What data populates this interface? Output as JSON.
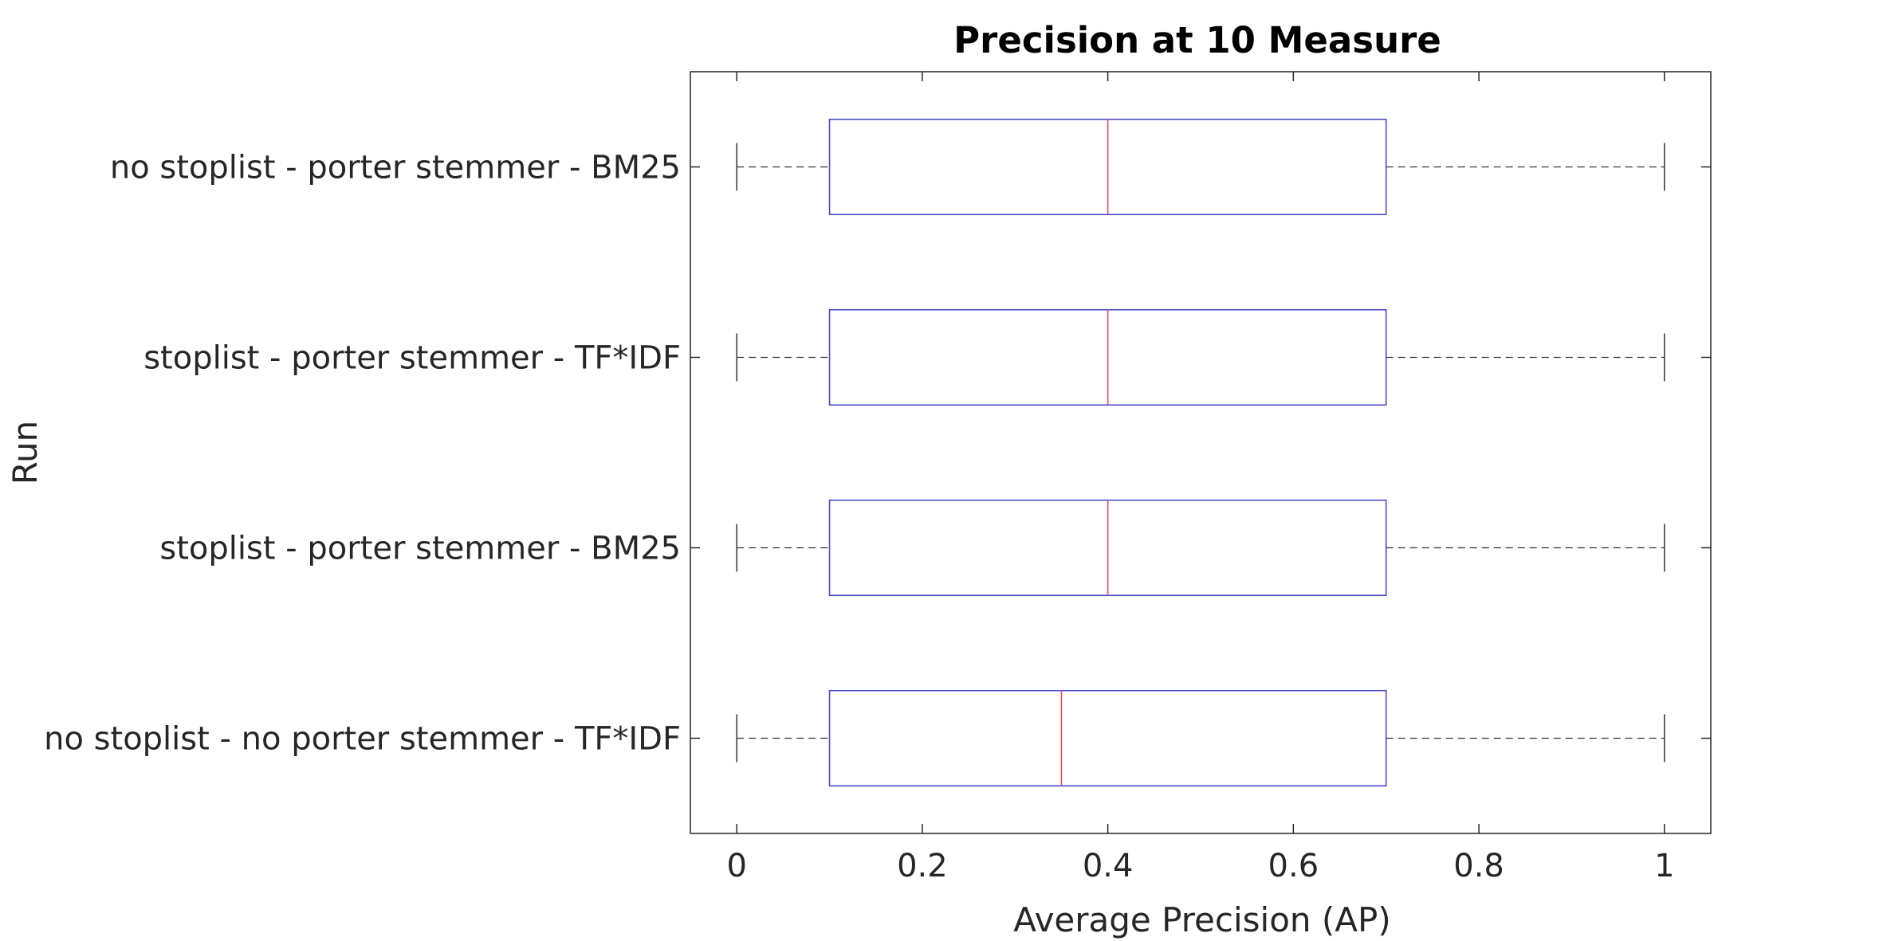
{
  "chart_data": {
    "type": "boxplot",
    "orientation": "horizontal",
    "title": "Precision at 10 Measure",
    "xlabel": "Average Precision (AP)",
    "ylabel": "Run",
    "xlim": [
      -0.05,
      1.05
    ],
    "xticks": [
      0,
      0.2,
      0.4,
      0.6,
      0.8,
      1
    ],
    "xtick_labels": [
      "0",
      "0.2",
      "0.4",
      "0.6",
      "0.8",
      "1"
    ],
    "grid": false,
    "categories": [
      "no stoplist - porter stemmer - BM25",
      "stoplist - porter stemmer - TF*IDF",
      "stoplist - porter stemmer - BM25",
      "no stoplist - no porter stemmer - TF*IDF"
    ],
    "boxes": [
      {
        "min": 0,
        "q1": 0.1,
        "median": 0.4,
        "q3": 0.7,
        "max": 1
      },
      {
        "min": 0,
        "q1": 0.1,
        "median": 0.4,
        "q3": 0.7,
        "max": 1
      },
      {
        "min": 0,
        "q1": 0.1,
        "median": 0.4,
        "q3": 0.7,
        "max": 1
      },
      {
        "min": 0,
        "q1": 0.1,
        "median": 0.35,
        "q3": 0.7,
        "max": 1
      }
    ],
    "colors": {
      "box": "#4b4bc8",
      "median": "#e0525f",
      "whisker": "#333333",
      "axis": "#262626"
    }
  }
}
